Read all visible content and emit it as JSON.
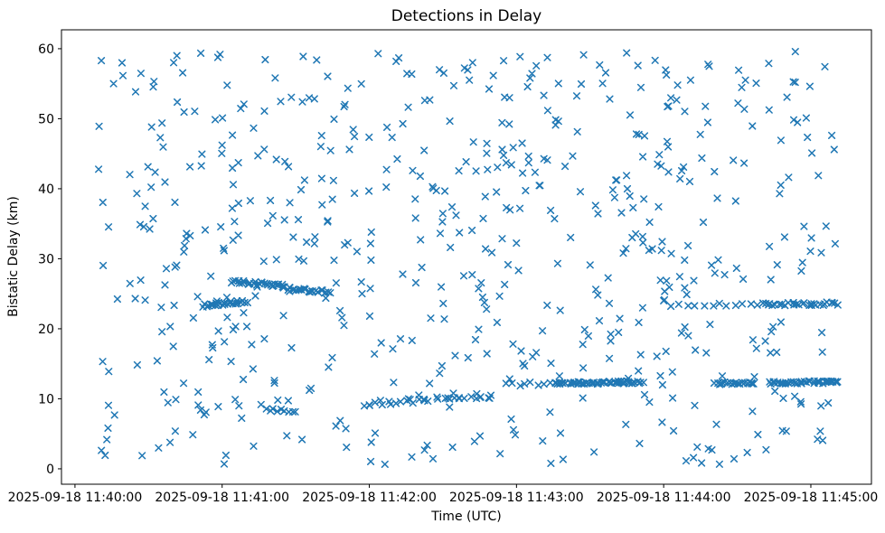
{
  "chart_data": {
    "type": "scatter",
    "title": "Detections in Delay",
    "xlabel": "Time (UTC)",
    "ylabel": "Bistatic Delay (km)",
    "x_tick_labels": [
      "2025-09-18 11:40:00",
      "2025-09-18 11:41:00",
      "2025-09-18 11:42:00",
      "2025-09-18 11:43:00",
      "2025-09-18 11:44:00",
      "2025-09-18 11:45:00"
    ],
    "x_tick_seconds": [
      0,
      60,
      120,
      180,
      240,
      300
    ],
    "x_epoch": "2025-09-18 11:40:00",
    "y_ticks": [
      0,
      10,
      20,
      30,
      40,
      50,
      60
    ],
    "xlim_seconds": [
      -5.5,
      324.7
    ],
    "ylim": [
      -2.2,
      62.7
    ],
    "grid": false,
    "legend": "none",
    "marker": {
      "shape": "x",
      "color": "#1f77b4",
      "half_size": 4,
      "stroke_width": 1.5
    },
    "axis_color": "#000000",
    "background_scatter": {
      "count": 600,
      "t_range_seconds": [
        9.5,
        310
      ],
      "km_range": [
        0.5,
        59.7
      ],
      "seed": 7
    },
    "streaks": [
      {
        "name": "track-23.6km-114052",
        "t_start": 52,
        "t_end": 70,
        "km_start": 23.3,
        "km_end": 23.9,
        "count": 24,
        "jitter_km": 0.25
      },
      {
        "name": "track-26.5km-114104",
        "t_start": 64,
        "t_end": 85,
        "km_start": 26.7,
        "km_end": 26.2,
        "count": 28,
        "jitter_km": 0.25
      },
      {
        "name": "track-25.5km-114125",
        "t_start": 85,
        "t_end": 104,
        "km_start": 25.8,
        "km_end": 25.2,
        "count": 26,
        "jitter_km": 0.25
      },
      {
        "name": "cluster-8.4km-114118",
        "t_start": 78,
        "t_end": 90,
        "km_start": 8.4,
        "km_end": 8.3,
        "count": 9,
        "jitter_km": 0.2
      },
      {
        "name": "track-10km-114200",
        "t_start": 118,
        "t_end": 171,
        "km_start": 9.3,
        "km_end": 10.4,
        "count": 34,
        "jitter_km": 0.35
      },
      {
        "name": "track-12km-leadin-114256",
        "t_start": 176,
        "t_end": 196,
        "km_start": 12.0,
        "km_end": 12.2,
        "count": 9,
        "jitter_km": 0.3
      },
      {
        "name": "track-12.3km-114316",
        "t_start": 196,
        "t_end": 231,
        "km_start": 12.2,
        "km_end": 12.4,
        "count": 60,
        "jitter_km": 0.18
      },
      {
        "name": "track-12.3km-114421",
        "t_start": 261,
        "t_end": 277,
        "km_start": 12.2,
        "km_end": 12.3,
        "count": 24,
        "jitter_km": 0.18
      },
      {
        "name": "track-12.3km-114443",
        "t_start": 283,
        "t_end": 311,
        "km_start": 12.3,
        "km_end": 12.4,
        "count": 42,
        "jitter_km": 0.18
      },
      {
        "name": "track-23.5km-114404-sparse",
        "t_start": 244,
        "t_end": 281,
        "km_start": 23.4,
        "km_end": 23.5,
        "count": 13,
        "jitter_km": 0.2
      },
      {
        "name": "track-23.5km-114441-dense",
        "t_start": 281,
        "t_end": 311,
        "km_start": 23.5,
        "km_end": 23.6,
        "count": 30,
        "jitter_km": 0.22
      }
    ]
  }
}
